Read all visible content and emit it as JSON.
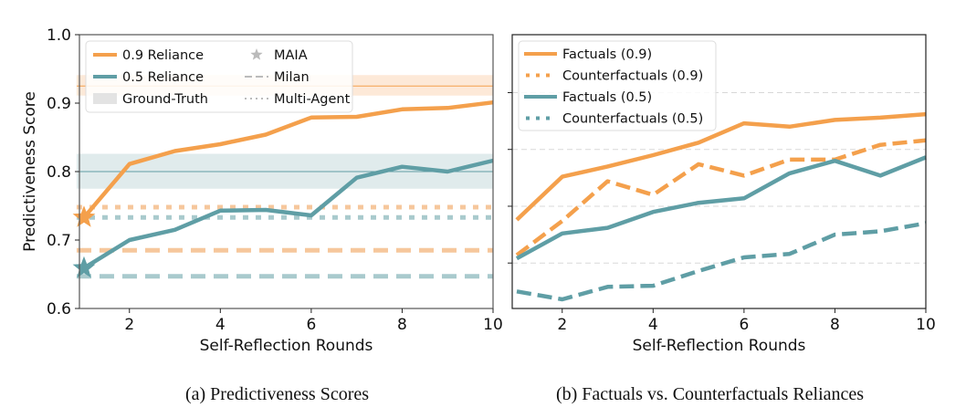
{
  "colors": {
    "orange": "#f4a04c",
    "teal": "#5f9ea5",
    "orange_light": "#f6c79c",
    "teal_light": "#a9cacd",
    "orange_band": "#fde9d8",
    "teal_band": "#e0ebec",
    "grid": "#d8d8d8",
    "legend_gray": "#bbbbbb",
    "gt_patch": "#e3e3e3"
  },
  "chart_data": [
    {
      "id": "a",
      "type": "line",
      "caption": "(a) Predictiveness Scores",
      "title": "",
      "xlabel": "Self-Reflection Rounds",
      "ylabel": "Predictiveness Score",
      "xlim": [
        0.9,
        10
      ],
      "ylim": [
        0.6,
        1.0
      ],
      "xticks": [
        2,
        4,
        6,
        8,
        10
      ],
      "xtick_labels": [
        "2",
        "4",
        "6",
        "8",
        "10"
      ],
      "yticks": [
        0.6,
        0.7,
        0.8,
        0.9,
        1.0
      ],
      "ytick_labels": [
        "0.6",
        "0.7",
        "0.8",
        "0.9",
        "1.0"
      ],
      "grid": false,
      "x": [
        1,
        2,
        3,
        4,
        5,
        6,
        7,
        8,
        9,
        10
      ],
      "series": [
        {
          "name": "0.9 Reliance",
          "color_key": "orange",
          "style": "solid",
          "values": [
            0.733,
            0.811,
            0.83,
            0.84,
            0.854,
            0.879,
            0.88,
            0.891,
            0.893,
            0.901
          ]
        },
        {
          "name": "0.5 Reliance",
          "color_key": "teal",
          "style": "solid",
          "values": [
            0.659,
            0.7,
            0.715,
            0.743,
            0.744,
            0.736,
            0.791,
            0.807,
            0.8,
            0.816
          ]
        }
      ],
      "markers": [
        {
          "name": "MAIA (0.9)",
          "kind": "star",
          "x": 1,
          "y": 0.733,
          "color_key": "orange"
        },
        {
          "name": "MAIA (0.5)",
          "kind": "star",
          "x": 1,
          "y": 0.659,
          "color_key": "teal"
        }
      ],
      "baselines": [
        {
          "name": "Ground-Truth (0.9)",
          "kind": "band",
          "y": 0.925,
          "low": 0.911,
          "high": 0.941,
          "color_key": "orange"
        },
        {
          "name": "Ground-Truth (0.5)",
          "kind": "band",
          "y": 0.8,
          "low": 0.775,
          "high": 0.826,
          "color_key": "teal"
        },
        {
          "name": "Multi-Agent (0.9)",
          "kind": "dotted",
          "y": 0.748,
          "color_key": "orange"
        },
        {
          "name": "Multi-Agent (0.5)",
          "kind": "dotted",
          "y": 0.733,
          "color_key": "teal"
        },
        {
          "name": "Milan (0.9)",
          "kind": "dashed",
          "y": 0.685,
          "color_key": "orange"
        },
        {
          "name": "Milan (0.5)",
          "kind": "dashed",
          "y": 0.647,
          "color_key": "teal"
        }
      ],
      "legend": {
        "placement": "top-left",
        "entries": [
          {
            "label": "0.9 Reliance",
            "kind": "line",
            "color_key": "orange"
          },
          {
            "label": "MAIA",
            "kind": "star",
            "color_key": "legend_gray"
          },
          {
            "label": "0.5 Reliance",
            "kind": "line",
            "color_key": "teal"
          },
          {
            "label": "Milan",
            "kind": "dashed",
            "color_key": "legend_gray"
          },
          {
            "label": "Ground-Truth",
            "kind": "patch",
            "color_key": "gt_patch"
          },
          {
            "label": "Multi-Agent",
            "kind": "dotted",
            "color_key": "legend_gray"
          }
        ]
      }
    },
    {
      "id": "b",
      "type": "line",
      "caption": "(b) Factuals vs. Counterfactuals Reliances",
      "title": "",
      "xlabel": "Self-Reflection Rounds",
      "ylabel": "",
      "xlim": [
        0.9,
        10
      ],
      "ylim": [
        0.66,
        0.901
      ],
      "xticks": [
        2,
        4,
        6,
        8,
        10
      ],
      "xtick_labels": [
        "2",
        "4",
        "6",
        "8",
        "10"
      ],
      "yticks": [
        0.7,
        0.75,
        0.8,
        0.85
      ],
      "ytick_labels": [
        "",
        "",
        "",
        ""
      ],
      "grid": true,
      "x": [
        1,
        2,
        3,
        4,
        5,
        6,
        7,
        8,
        9,
        10
      ],
      "series": [
        {
          "name": "Factuals (0.9)",
          "color_key": "orange",
          "style": "solid",
          "values": [
            0.738,
            0.776,
            0.785,
            0.795,
            0.806,
            0.823,
            0.82,
            0.826,
            0.828,
            0.831
          ]
        },
        {
          "name": "Counterfactuals (0.9)",
          "color_key": "orange",
          "style": "dashed",
          "values": [
            0.707,
            0.737,
            0.772,
            0.76,
            0.787,
            0.777,
            0.791,
            0.791,
            0.804,
            0.808
          ]
        },
        {
          "name": "Factuals (0.5)",
          "color_key": "teal",
          "style": "solid",
          "values": [
            0.704,
            0.726,
            0.731,
            0.745,
            0.753,
            0.757,
            0.779,
            0.79,
            0.777,
            0.793
          ]
        },
        {
          "name": "Counterfactuals (0.5)",
          "color_key": "teal",
          "style": "dashed",
          "values": [
            0.675,
            0.668,
            0.679,
            0.68,
            0.693,
            0.705,
            0.708,
            0.725,
            0.728,
            0.735
          ]
        }
      ],
      "legend": {
        "placement": "top-left",
        "entries": [
          {
            "label": "Factuals (0.9)",
            "kind": "line",
            "color_key": "orange"
          },
          {
            "label": "Counterfactuals (0.9)",
            "kind": "dotted",
            "color_key": "orange"
          },
          {
            "label": "Factuals (0.5)",
            "kind": "line",
            "color_key": "teal"
          },
          {
            "label": "Counterfactuals (0.5)",
            "kind": "dotted",
            "color_key": "teal"
          }
        ]
      }
    }
  ]
}
